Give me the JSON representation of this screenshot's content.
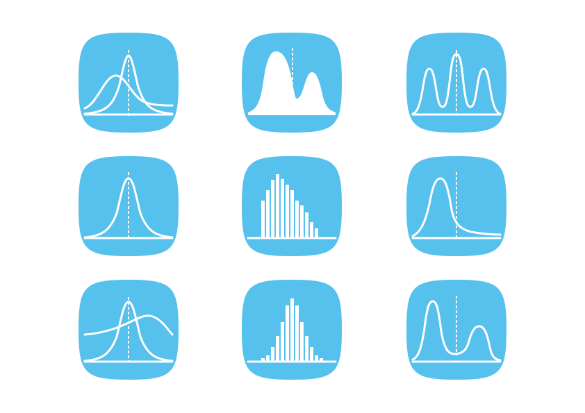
{
  "colors": {
    "tile": "#56C1ED",
    "glyph": "#ffffff",
    "background": "#ffffff"
  },
  "icons": [
    {
      "name": "overlapping-curves-icon"
    },
    {
      "name": "bimodal-area-icon"
    },
    {
      "name": "trimodal-curve-icon"
    },
    {
      "name": "normal-curve-icon"
    },
    {
      "name": "skewed-histogram-icon"
    },
    {
      "name": "right-skewed-curve-icon"
    },
    {
      "name": "wide-and-narrow-curves-icon"
    },
    {
      "name": "normal-histogram-icon"
    },
    {
      "name": "bimodal-curve-icon"
    }
  ]
}
